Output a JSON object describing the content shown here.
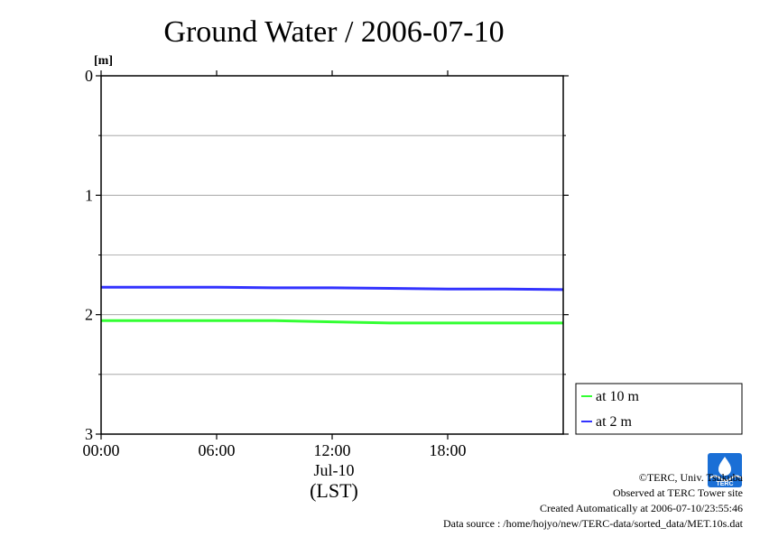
{
  "chart_data": {
    "type": "line",
    "title": "Ground Water / 2006-07-10",
    "ylabel": "[m]",
    "xlabel": "(LST)",
    "x_date_label": "Jul-10",
    "y_axis_inverted": true,
    "ylim": [
      0,
      3
    ],
    "yticks": [
      "0",
      "1",
      "2",
      "3"
    ],
    "xlim": [
      "00:00",
      "24:00"
    ],
    "xticks": [
      "00:00",
      "06:00",
      "12:00",
      "18:00"
    ],
    "grid": "horizontal",
    "legend_position": "bottom-right, outside plot",
    "series": [
      {
        "name": "at 10 m",
        "color": "#33ff33",
        "x": [
          "00:00",
          "03:00",
          "06:00",
          "09:00",
          "12:00",
          "15:00",
          "18:00",
          "21:00",
          "24:00"
        ],
        "values": [
          2.05,
          2.05,
          2.05,
          2.05,
          2.06,
          2.07,
          2.07,
          2.07,
          2.07
        ]
      },
      {
        "name": "at 2 m",
        "color": "#3333ff",
        "x": [
          "00:00",
          "03:00",
          "06:00",
          "09:00",
          "12:00",
          "15:00",
          "18:00",
          "21:00",
          "24:00"
        ],
        "values": [
          1.77,
          1.77,
          1.77,
          1.775,
          1.775,
          1.78,
          1.785,
          1.785,
          1.79
        ]
      }
    ]
  },
  "footer": {
    "copyright": "©TERC, Univ. Tsukuba",
    "observed": "Observed at TERC Tower site",
    "created": "Created Automatically at 2006-07-10/23:55:46",
    "source": "Data source : /home/hojyo/new/TERC-data/sorted_data/MET.10s.dat"
  },
  "logo": {
    "label": "TERC",
    "color": "#1a6fd6"
  }
}
